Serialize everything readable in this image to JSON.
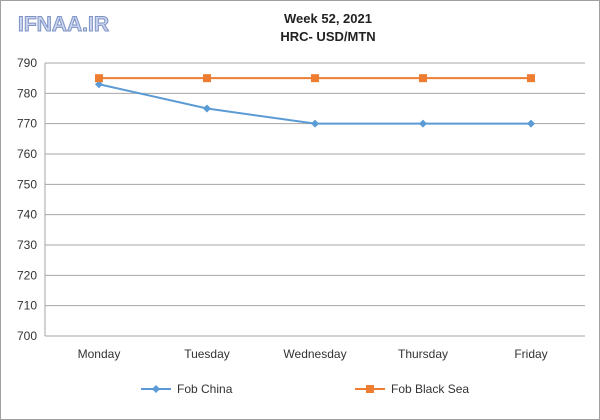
{
  "logo_text": "IFNAA.IR",
  "chart_data": {
    "type": "line",
    "title": "Week 52, 2021",
    "subtitle": "HRC- USD/MTN",
    "categories": [
      "Monday",
      "Tuesday",
      "Wednesday",
      "Thursday",
      "Friday"
    ],
    "series": [
      {
        "name": "Fob China",
        "values": [
          783,
          775,
          770,
          770,
          770
        ],
        "color": "#5b9bd5",
        "marker": "diamond"
      },
      {
        "name": "Fob Black Sea",
        "values": [
          785,
          785,
          785,
          785,
          785
        ],
        "color": "#ed7d31",
        "marker": "square"
      }
    ],
    "ylim": [
      700,
      790
    ],
    "yticks": [
      700,
      710,
      720,
      730,
      740,
      750,
      760,
      770,
      780,
      790
    ],
    "grid": true,
    "legend": "bottom",
    "xlabel": "",
    "ylabel": ""
  }
}
